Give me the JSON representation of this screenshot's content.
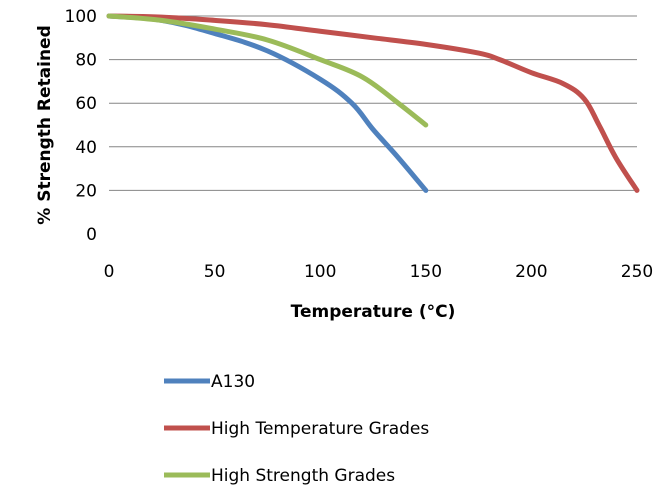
{
  "chart_data": {
    "type": "line",
    "title": "",
    "xlabel": "Temperature (°C)",
    "ylabel": "% Strength Retained",
    "xlim": [
      0,
      250
    ],
    "ylim": [
      0,
      100
    ],
    "x_ticks": [
      "0",
      "50",
      "100",
      "150",
      "200",
      "250"
    ],
    "y_ticks": [
      "0",
      "20",
      "40",
      "60",
      "80",
      "100"
    ],
    "grid": "horizontal",
    "legend_position": "bottom",
    "series": [
      {
        "name": "A130",
        "color": "#4F81BD",
        "x": [
          0,
          25,
          50,
          75,
          100,
          115,
          125,
          137,
          150
        ],
        "y": [
          100,
          98,
          92,
          84,
          71,
          60,
          48,
          35,
          20
        ]
      },
      {
        "name": "High Temperature Grades",
        "color": "#C0504D",
        "x": [
          0,
          25,
          50,
          75,
          100,
          125,
          150,
          175,
          185,
          200,
          215,
          225,
          232,
          240,
          250
        ],
        "y": [
          100,
          99.5,
          98,
          96,
          93,
          90,
          87,
          83,
          80,
          74,
          69,
          62,
          50,
          35,
          20
        ]
      },
      {
        "name": "High Strength Grades",
        "color": "#9BBB59",
        "x": [
          0,
          25,
          50,
          75,
          100,
          120,
          137,
          150
        ],
        "y": [
          100,
          98,
          94,
          89,
          80,
          72,
          60,
          50
        ]
      }
    ]
  }
}
